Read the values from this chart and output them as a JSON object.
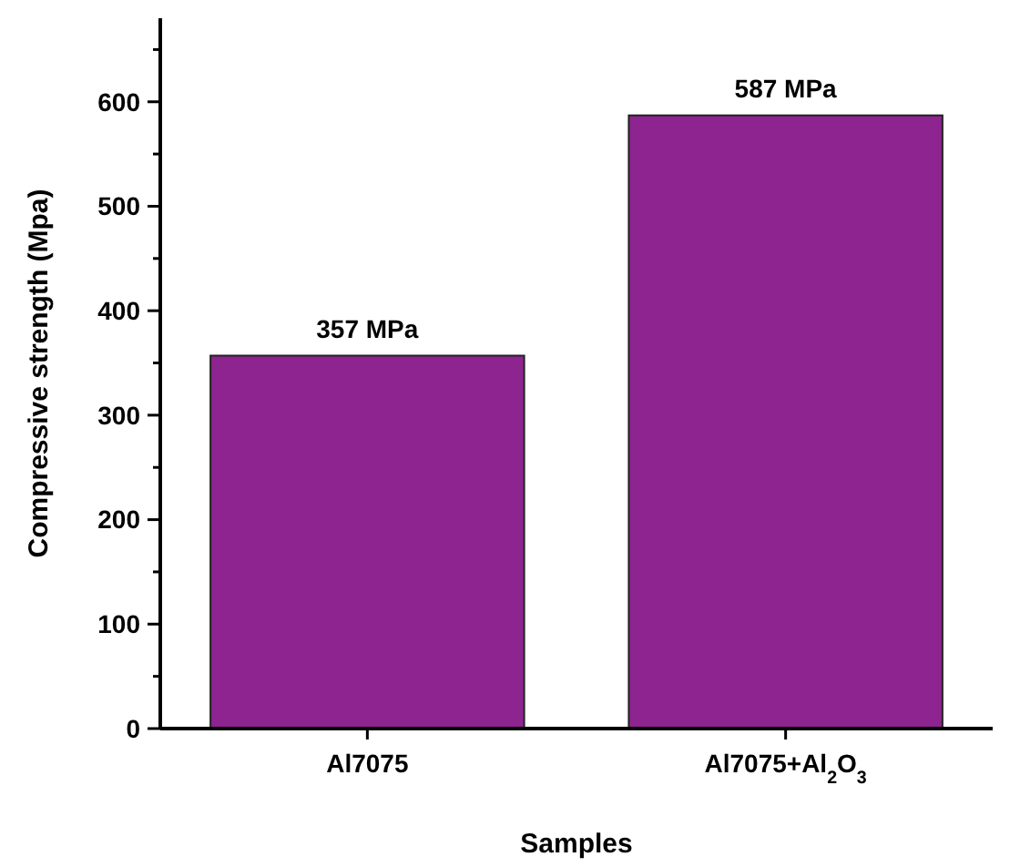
{
  "chart_data": {
    "type": "bar",
    "xlabel": "Samples",
    "ylabel": "Compressive strength (Mpa)",
    "categories": [
      "Al7075",
      "Al7075+Al$_{2}$O$_{3}$"
    ],
    "values": [
      357,
      587
    ],
    "color": "#8e2490",
    "value_labels": [
      "357 MPa",
      "587 MPa"
    ],
    "ylim": [
      0,
      680
    ],
    "yticks": [
      0,
      {
        "value": 50,
        "label": null
      },
      100,
      {
        "value": 150,
        "label": null
      },
      200,
      {
        "value": 250,
        "label": null
      },
      300,
      {
        "value": 350,
        "label": null
      },
      400,
      {
        "value": 450,
        "label": null
      },
      500,
      {
        "value": 550,
        "label": null
      },
      600,
      {
        "value": 650,
        "label": null
      }
    ]
  }
}
